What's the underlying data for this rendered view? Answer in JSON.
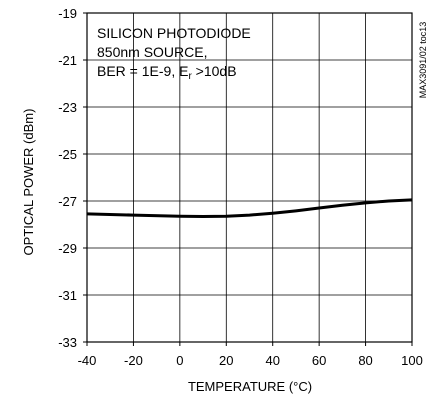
{
  "chart_data": {
    "type": "line",
    "xlabel": "TEMPERATURE (°C)",
    "ylabel": "OPTICAL POWER (dBm)",
    "xlim": [
      -40,
      100
    ],
    "ylim": [
      -33,
      -19
    ],
    "x_ticks": [
      -40,
      -20,
      0,
      20,
      40,
      60,
      80,
      100
    ],
    "y_ticks": [
      -19,
      -21,
      -23,
      -25,
      -27,
      -29,
      -31,
      -33
    ],
    "x_tick_labels": [
      "-40",
      "-20",
      "0",
      "20",
      "40",
      "60",
      "80",
      "100"
    ],
    "y_tick_labels": [
      "-19",
      "-21",
      "-23",
      "-25",
      "-27",
      "-29",
      "-31",
      "-33"
    ],
    "annotation_lines": [
      "SILICON PHOTODIODE",
      "850nm SOURCE,",
      "BER = 1E-9, E",
      "r",
      " >10dB"
    ],
    "side_label": "MAX3091/02 toc13",
    "grid": true,
    "series": [
      {
        "x": [
          -40,
          -20,
          0,
          10,
          20,
          30,
          40,
          50,
          60,
          70,
          80,
          90,
          100
        ],
        "y": [
          -27.55,
          -27.6,
          -27.65,
          -27.66,
          -27.65,
          -27.6,
          -27.52,
          -27.42,
          -27.3,
          -27.18,
          -27.08,
          -27.0,
          -26.95
        ]
      }
    ],
    "line_color": "#000000"
  }
}
